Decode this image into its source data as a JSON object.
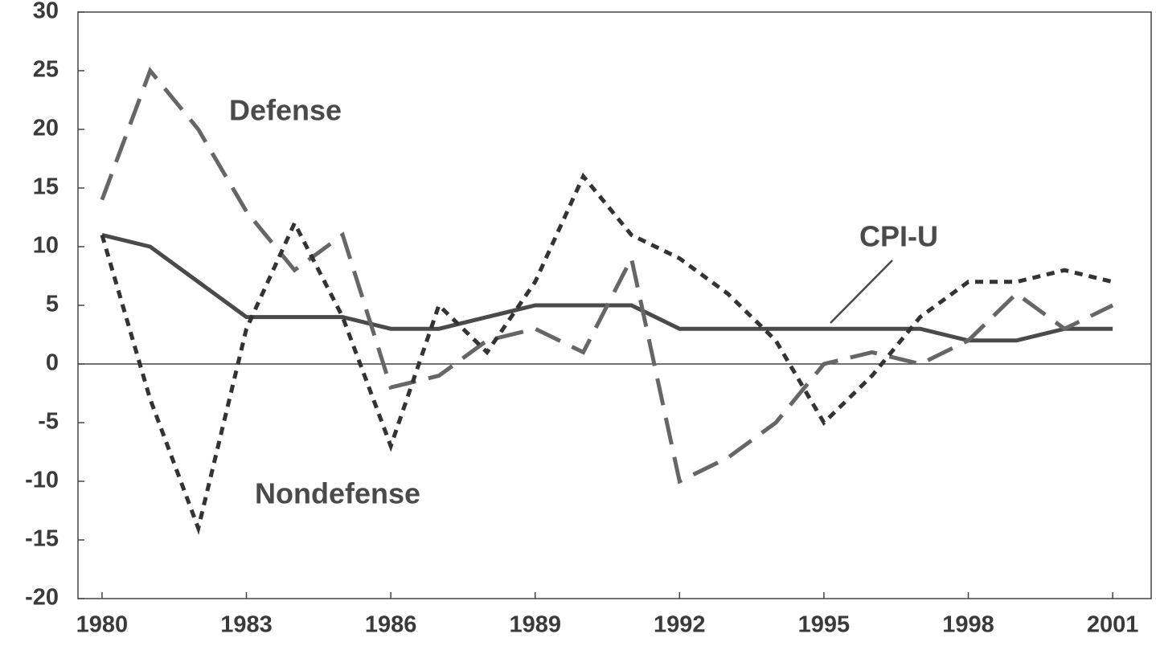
{
  "chart_data": {
    "type": "line",
    "x": [
      1980,
      1981,
      1982,
      1983,
      1984,
      1985,
      1986,
      1987,
      1988,
      1989,
      1990,
      1991,
      1992,
      1993,
      1994,
      1995,
      1996,
      1997,
      1998,
      1999,
      2000,
      2001
    ],
    "series": [
      {
        "name": "CPI-U",
        "color": "#4a4a4a",
        "dash": "solid",
        "values": [
          11,
          10,
          7,
          4,
          4,
          4,
          3,
          3,
          4,
          5,
          5,
          5,
          3,
          3,
          3,
          3,
          3,
          3,
          2,
          2,
          3,
          3
        ]
      },
      {
        "name": "Defense",
        "color": "#666666",
        "dash": "long",
        "values": [
          14,
          25,
          20,
          13,
          8,
          11,
          -2,
          -1,
          2,
          3,
          1,
          9,
          -10,
          -8,
          -5,
          0,
          1,
          0,
          2,
          6,
          3,
          5
        ]
      },
      {
        "name": "Nondefense",
        "color": "#333333",
        "dash": "short",
        "values": [
          11,
          -3,
          -14,
          3,
          12,
          4,
          -7,
          5,
          1,
          7,
          16,
          11,
          9,
          6,
          2,
          -5,
          -1,
          4,
          7,
          7,
          8,
          7
        ]
      }
    ],
    "xlim": [
      1979.5,
      2001.8
    ],
    "xticks": [
      1980,
      1983,
      1986,
      1989,
      1992,
      1995,
      1998,
      2001
    ],
    "ylim": [
      -20,
      30
    ],
    "yticks": [
      -20,
      -15,
      -10,
      -5,
      0,
      5,
      10,
      15,
      20,
      25,
      30
    ],
    "grid": false
  }
}
